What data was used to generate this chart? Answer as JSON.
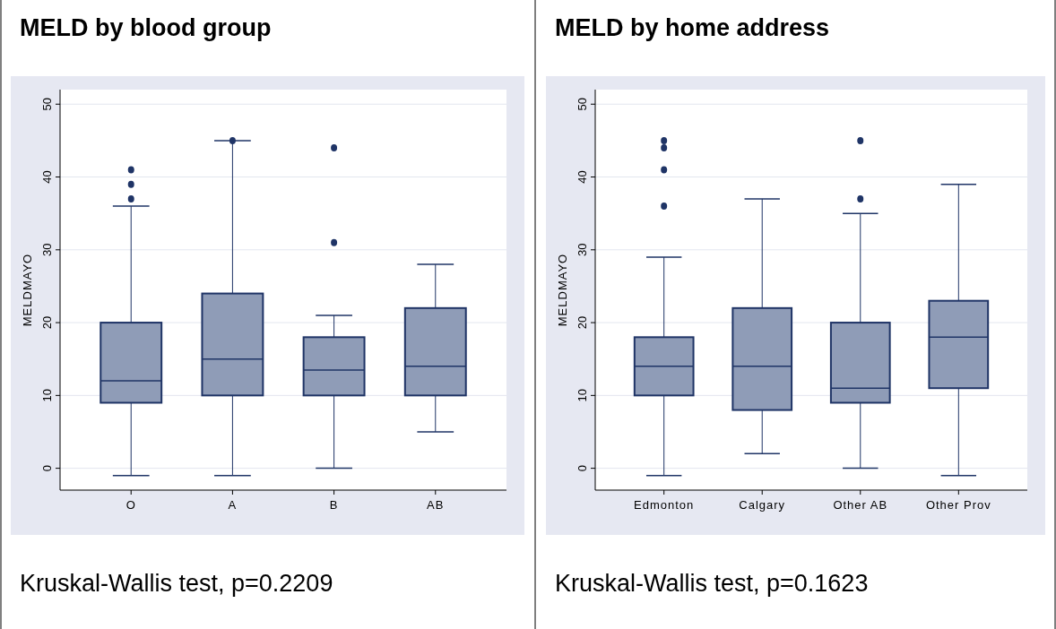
{
  "chart_data": [
    {
      "type": "box",
      "title": "MELD by blood group",
      "ylabel": "MELDMAYO",
      "categories": [
        "O",
        "A",
        "B",
        "AB"
      ],
      "ylim": [
        -3,
        52
      ],
      "yticks": [
        0,
        10,
        20,
        30,
        40,
        50
      ],
      "grid": "y",
      "color": "#8f9cb7",
      "annotations": [
        "Kruskal-Wallis test, p=0.2209"
      ],
      "boxes": [
        {
          "low": -1,
          "q1": 9,
          "median": 12,
          "q3": 20,
          "high": 36,
          "outliers": [
            37,
            39,
            41
          ]
        },
        {
          "low": -1,
          "q1": 10,
          "median": 15,
          "q3": 24,
          "high": 45,
          "outliers": [
            45
          ]
        },
        {
          "low": 0,
          "q1": 10,
          "median": 13.5,
          "q3": 18,
          "high": 21,
          "outliers": [
            31,
            44
          ]
        },
        {
          "low": 5,
          "q1": 10,
          "median": 14,
          "q3": 22,
          "high": 28
        }
      ]
    },
    {
      "type": "box",
      "title": "MELD by home address",
      "ylabel": "MELDMAYO",
      "categories": [
        "Edmonton",
        "Calgary",
        "Other AB",
        "Other Prov"
      ],
      "ylim": [
        -3,
        52
      ],
      "yticks": [
        0,
        10,
        20,
        30,
        40,
        50
      ],
      "grid": "y",
      "color": "#8f9cb7",
      "annotations": [
        "Kruskal-Wallis test, p=0.1623"
      ],
      "boxes": [
        {
          "low": -1,
          "q1": 10,
          "median": 14,
          "q3": 18,
          "high": 29,
          "outliers": [
            36,
            41,
            44,
            45
          ]
        },
        {
          "low": 2,
          "q1": 8,
          "median": 14,
          "q3": 22,
          "high": 37
        },
        {
          "low": 0,
          "q1": 9,
          "median": 11,
          "q3": 20,
          "high": 35,
          "outliers": [
            37,
            45
          ]
        },
        {
          "low": -1,
          "q1": 11,
          "median": 18,
          "q3": 23,
          "high": 39
        }
      ]
    }
  ]
}
